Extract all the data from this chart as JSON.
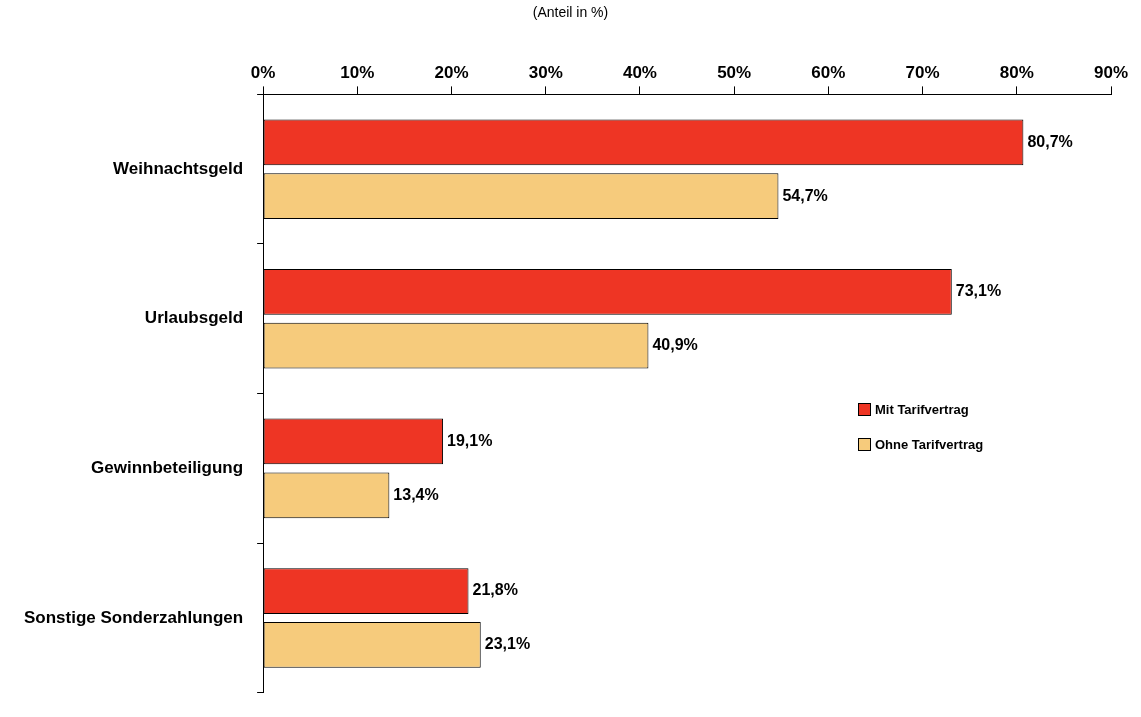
{
  "chart_data": {
    "type": "bar",
    "orientation": "horizontal",
    "subtitle": "(Anteil in %)",
    "categories": [
      "Weihnachtsgeld",
      "Urlaubsgeld",
      "Gewinnbeteiligung",
      "Sonstige Sonderzahlungen"
    ],
    "series": [
      {
        "name": "Mit Tarifvertrag",
        "color": "#ee3524",
        "values": [
          80.7,
          73.1,
          19.1,
          21.8
        ],
        "value_labels": [
          "80,7%",
          "73,1%",
          "19,1%",
          "21,8%"
        ]
      },
      {
        "name": "Ohne Tarifvertrag",
        "color": "#f6cb7c",
        "values": [
          54.7,
          40.9,
          13.4,
          23.1
        ],
        "value_labels": [
          "54,7%",
          "40,9%",
          "13,4%",
          "23,1%"
        ]
      }
    ],
    "xlim": [
      0,
      90
    ],
    "xticks": [
      {
        "value": 0,
        "label": "0%"
      },
      {
        "value": 10,
        "label": "10%"
      },
      {
        "value": 20,
        "label": "20%"
      },
      {
        "value": 30,
        "label": "30%"
      },
      {
        "value": 40,
        "label": "40%"
      },
      {
        "value": 50,
        "label": "50%"
      },
      {
        "value": 60,
        "label": "60%"
      },
      {
        "value": 70,
        "label": "70%"
      },
      {
        "value": 80,
        "label": "80%"
      },
      {
        "value": 90,
        "label": "90%"
      }
    ],
    "grid": false,
    "legend": "right"
  }
}
